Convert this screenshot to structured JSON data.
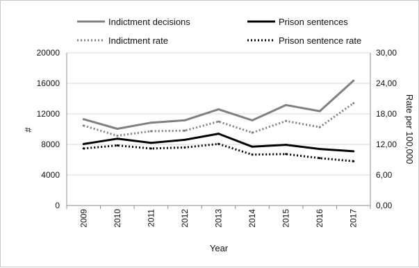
{
  "chart_data": {
    "type": "line",
    "title": "",
    "xlabel": "Year",
    "ylabel": "#",
    "y2label": "Rate per 100,000",
    "x": [
      "2009",
      "2010",
      "2011",
      "2012",
      "2013",
      "2014",
      "2015",
      "2016",
      "2017"
    ],
    "ylim": [
      0,
      20000
    ],
    "y2lim": [
      0,
      30
    ],
    "yticks": [
      "0",
      "4000",
      "8000",
      "12000",
      "16000",
      "20000"
    ],
    "y2ticks": [
      "0,00",
      "6,00",
      "12,00",
      "18,00",
      "24,00",
      "30,00"
    ],
    "grid": "horizontal",
    "legend_position": "top",
    "series": [
      {
        "name": "Indictment decisions",
        "axis": "left",
        "color": "#808080",
        "style": "solid",
        "values": [
          11300,
          10050,
          10850,
          11150,
          12600,
          11150,
          13150,
          12350,
          16350
        ]
      },
      {
        "name": "Prison sentences",
        "axis": "left",
        "color": "#000000",
        "style": "solid",
        "values": [
          8050,
          8750,
          8200,
          8600,
          9400,
          7700,
          7950,
          7400,
          7100
        ]
      },
      {
        "name": "Indictment rate",
        "axis": "right",
        "color": "#808080",
        "style": "dotted",
        "values": [
          15.7,
          13.7,
          14.6,
          14.7,
          16.5,
          14.3,
          16.6,
          15.4,
          20.1
        ]
      },
      {
        "name": "Prison sentence rate",
        "axis": "right",
        "color": "#000000",
        "style": "dotted",
        "values": [
          11.2,
          11.8,
          11.2,
          11.4,
          12.1,
          10.0,
          10.1,
          9.3,
          8.7
        ]
      }
    ]
  }
}
